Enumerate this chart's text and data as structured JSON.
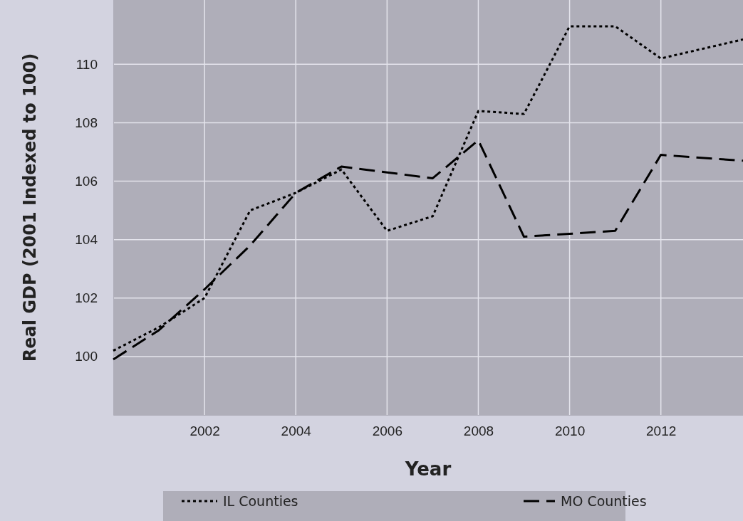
{
  "chart_data": {
    "type": "line",
    "xlabel": "Year",
    "ylabel": "Real GDP (2001 Indexed to 100)",
    "x": [
      2000,
      2001,
      2002,
      2003,
      2004,
      2005,
      2006,
      2007,
      2008,
      2009,
      2010,
      2011,
      2012,
      2013.8
    ],
    "series": [
      {
        "name": "IL Counties",
        "color": "#000000",
        "line_style": "dotted",
        "values": [
          100.2,
          101.0,
          102.0,
          105.0,
          105.6,
          106.4,
          104.3,
          104.8,
          108.4,
          108.3,
          111.3,
          111.3,
          110.2,
          110.85
        ]
      },
      {
        "name": "MO Counties",
        "color": "#000000",
        "line_style": "dashed",
        "values": [
          99.9,
          100.9,
          102.3,
          103.8,
          105.6,
          106.5,
          106.3,
          106.1,
          107.4,
          104.1,
          104.2,
          104.3,
          106.9,
          106.7
        ]
      }
    ],
    "xlim": [
      2000,
      2013.8
    ],
    "xticks": [
      2002,
      2004,
      2006,
      2008,
      2010,
      2012
    ],
    "ylim": [
      98,
      112.2
    ],
    "yticks": [
      100,
      102,
      104,
      106,
      108,
      110
    ],
    "grid": true,
    "legend": "bottom",
    "marker": "none"
  }
}
